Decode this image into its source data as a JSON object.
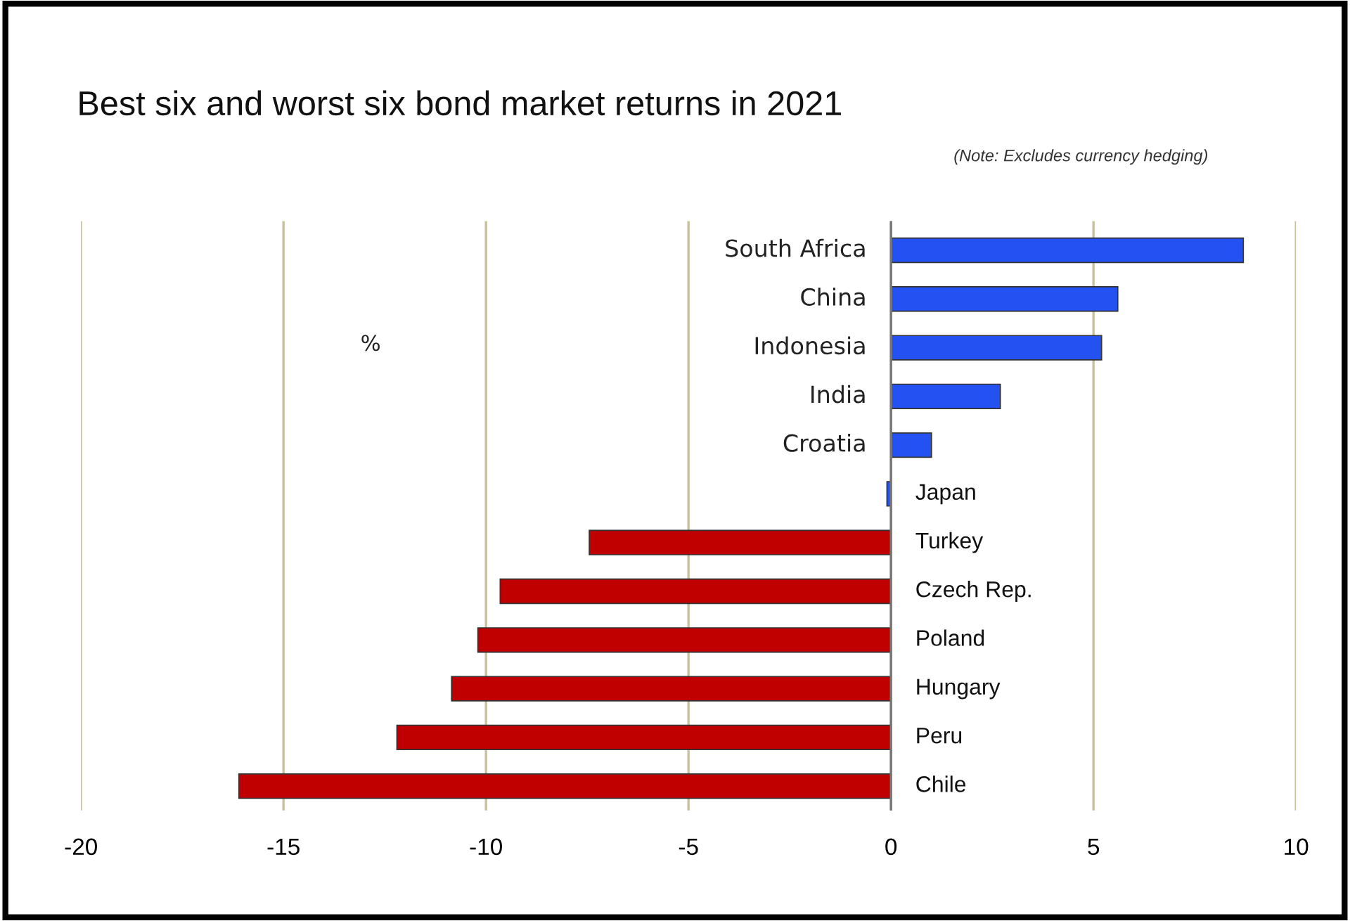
{
  "chart_data": {
    "type": "bar",
    "orientation": "horizontal",
    "title": "Best six and worst six bond market returns in 2021",
    "subtitle": "(Note: Excludes currency hedging)",
    "categories": [
      "South Africa",
      "China",
      "Indonesia",
      "India",
      "Croatia",
      "Japan",
      "Turkey",
      "Czech Rep.",
      "Poland",
      "Hungary",
      "Peru",
      "Chile"
    ],
    "values": [
      8.7,
      5.6,
      5.2,
      2.7,
      1.0,
      -0.1,
      -7.45,
      -9.65,
      -10.2,
      -10.85,
      -12.2,
      -16.1
    ],
    "colors": [
      "#2452f2",
      "#2452f2",
      "#2452f2",
      "#2452f2",
      "#2452f2",
      "#2452f2",
      "#c00000",
      "#c00000",
      "#c00000",
      "#c00000",
      "#c00000",
      "#c00000"
    ],
    "xlim": [
      -20,
      10
    ],
    "xticks": [
      -20,
      -15,
      -10,
      -5,
      0,
      5,
      10
    ],
    "grid": "x",
    "annotations": [
      "%"
    ]
  }
}
